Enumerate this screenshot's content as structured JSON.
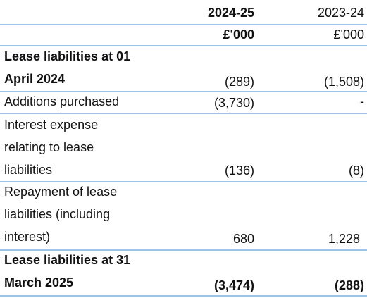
{
  "header": {
    "year_current": "2024-25",
    "year_prior": "2023-24",
    "unit_current": "£'000",
    "unit_prior": "£'000"
  },
  "rows": [
    {
      "label_lines": [
        "Lease liabilities at 01",
        "April 2024"
      ],
      "current": "(289)",
      "prior": "(1,508)",
      "bold": true
    },
    {
      "label_lines": [
        "Additions purchased"
      ],
      "current": "(3,730)",
      "prior": "-",
      "bold": false
    },
    {
      "label_lines": [
        "Interest expense",
        "relating to lease",
        "liabilities"
      ],
      "current": "(136)",
      "prior": "(8)",
      "bold": false
    },
    {
      "label_lines": [
        "Repayment of lease",
        "liabilities (including",
        "interest)"
      ],
      "current": "680",
      "prior": "1,228",
      "bold": false
    },
    {
      "label_lines": [
        "Lease liabilities at 31",
        "March 2025"
      ],
      "current": "(3,474)",
      "prior": "(288)",
      "bold": true
    }
  ]
}
